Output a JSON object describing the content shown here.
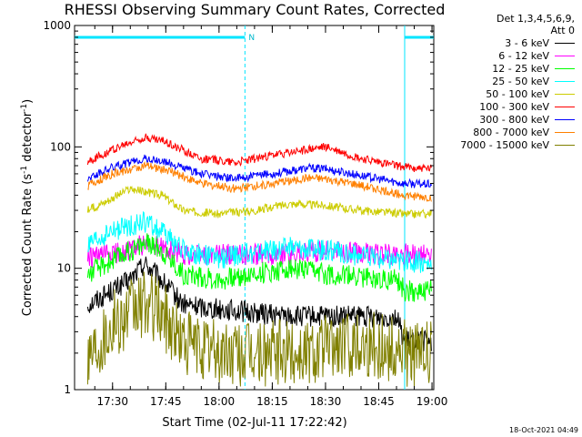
{
  "chart_data": {
    "type": "line",
    "title": "RHESSI Observing Summary Count Rates, Corrected",
    "xlabel": "Start Time (02-Jul-11 17:22:42)",
    "ylabel": "Corrected Count Rate (s⁻¹ detector⁻¹)",
    "ylabel_parts": [
      "Corrected Count Rate (s",
      "-1",
      " detector",
      "-1",
      ")"
    ],
    "y_scale": "log",
    "ylim": [
      1,
      1000
    ],
    "yticks": [
      "1",
      "10",
      "100",
      "1000"
    ],
    "xlim_minutes": [
      -10.7,
      90.5
    ],
    "xticks": [
      "17:30",
      "17:45",
      "18:00",
      "18:15",
      "18:30",
      "18:45",
      "19:00"
    ],
    "legend_header": [
      "Det 1,3,4,5,6,9,",
      "Att 0"
    ],
    "night_intervals_minutes": [
      [
        -10.7,
        37.3
      ],
      [
        82.3,
        90.5
      ]
    ],
    "flag_label": "N",
    "series": [
      {
        "name": "3 - 6 keV",
        "color": "#000000",
        "points": [
          [
            -7,
            5
          ],
          [
            5,
            8
          ],
          [
            9,
            11
          ],
          [
            12,
            9
          ],
          [
            20,
            5
          ],
          [
            50,
            4
          ],
          [
            80,
            4
          ],
          [
            82.3,
            2.5
          ],
          [
            90,
            2.5
          ]
        ]
      },
      {
        "name": "6 - 12 keV",
        "color": "#ff00ff",
        "points": [
          [
            -7,
            12
          ],
          [
            5,
            14
          ],
          [
            9,
            16
          ],
          [
            13,
            15
          ],
          [
            20,
            13
          ],
          [
            30,
            13
          ],
          [
            45,
            13
          ],
          [
            60,
            14
          ],
          [
            75,
            13
          ],
          [
            90,
            13
          ]
        ]
      },
      {
        "name": "12 - 25 keV",
        "color": "#00ff00",
        "points": [
          [
            -7,
            9
          ],
          [
            5,
            14
          ],
          [
            9,
            16
          ],
          [
            13,
            15
          ],
          [
            20,
            9
          ],
          [
            30,
            8
          ],
          [
            50,
            10
          ],
          [
            60,
            9
          ],
          [
            80,
            8
          ],
          [
            82.3,
            6.5
          ],
          [
            90,
            6.5
          ]
        ]
      },
      {
        "name": "25 - 50 keV",
        "color": "#00ffff",
        "points": [
          [
            -7,
            15
          ],
          [
            0,
            20
          ],
          [
            9,
            24
          ],
          [
            14,
            20
          ],
          [
            20,
            14
          ],
          [
            30,
            12
          ],
          [
            50,
            15
          ],
          [
            60,
            14
          ],
          [
            75,
            12
          ],
          [
            90,
            11
          ]
        ]
      },
      {
        "name": "50 - 100 keV",
        "color": "#cccc00",
        "points": [
          [
            -7,
            30
          ],
          [
            0,
            38
          ],
          [
            5,
            45
          ],
          [
            10,
            42
          ],
          [
            14,
            40
          ],
          [
            20,
            30
          ],
          [
            30,
            28
          ],
          [
            40,
            30
          ],
          [
            50,
            34
          ],
          [
            60,
            33
          ],
          [
            70,
            30
          ],
          [
            82,
            28
          ],
          [
            90,
            28
          ]
        ]
      },
      {
        "name": "100 - 300 keV",
        "color": "#ff0000",
        "points": [
          [
            -7,
            75
          ],
          [
            0,
            95
          ],
          [
            9,
            120
          ],
          [
            15,
            110
          ],
          [
            25,
            80
          ],
          [
            35,
            75
          ],
          [
            45,
            85
          ],
          [
            55,
            95
          ],
          [
            60,
            100
          ],
          [
            70,
            80
          ],
          [
            82,
            68
          ],
          [
            90,
            66
          ]
        ]
      },
      {
        "name": "300 - 800 keV",
        "color": "#0000ff",
        "points": [
          [
            -7,
            55
          ],
          [
            0,
            68
          ],
          [
            9,
            80
          ],
          [
            15,
            75
          ],
          [
            25,
            60
          ],
          [
            35,
            55
          ],
          [
            45,
            60
          ],
          [
            55,
            67
          ],
          [
            60,
            66
          ],
          [
            70,
            58
          ],
          [
            82,
            50
          ],
          [
            90,
            49
          ]
        ]
      },
      {
        "name": "800 - 7000 keV",
        "color": "#ff8000",
        "points": [
          [
            -7,
            48
          ],
          [
            0,
            60
          ],
          [
            9,
            70
          ],
          [
            15,
            65
          ],
          [
            25,
            50
          ],
          [
            35,
            45
          ],
          [
            45,
            50
          ],
          [
            55,
            55
          ],
          [
            60,
            54
          ],
          [
            70,
            48
          ],
          [
            82,
            40
          ],
          [
            90,
            38
          ]
        ]
      },
      {
        "name": "7000 - 15000 keV",
        "color": "#808000",
        "points": [
          [
            -7,
            2
          ],
          [
            0,
            3.5
          ],
          [
            9,
            5
          ],
          [
            13,
            4.5
          ],
          [
            20,
            2.5
          ],
          [
            30,
            2
          ],
          [
            50,
            2
          ],
          [
            70,
            2.5
          ],
          [
            82.3,
            2
          ],
          [
            90,
            2
          ]
        ]
      }
    ]
  },
  "footer_stamp": "18-Oct-2021 04:49"
}
